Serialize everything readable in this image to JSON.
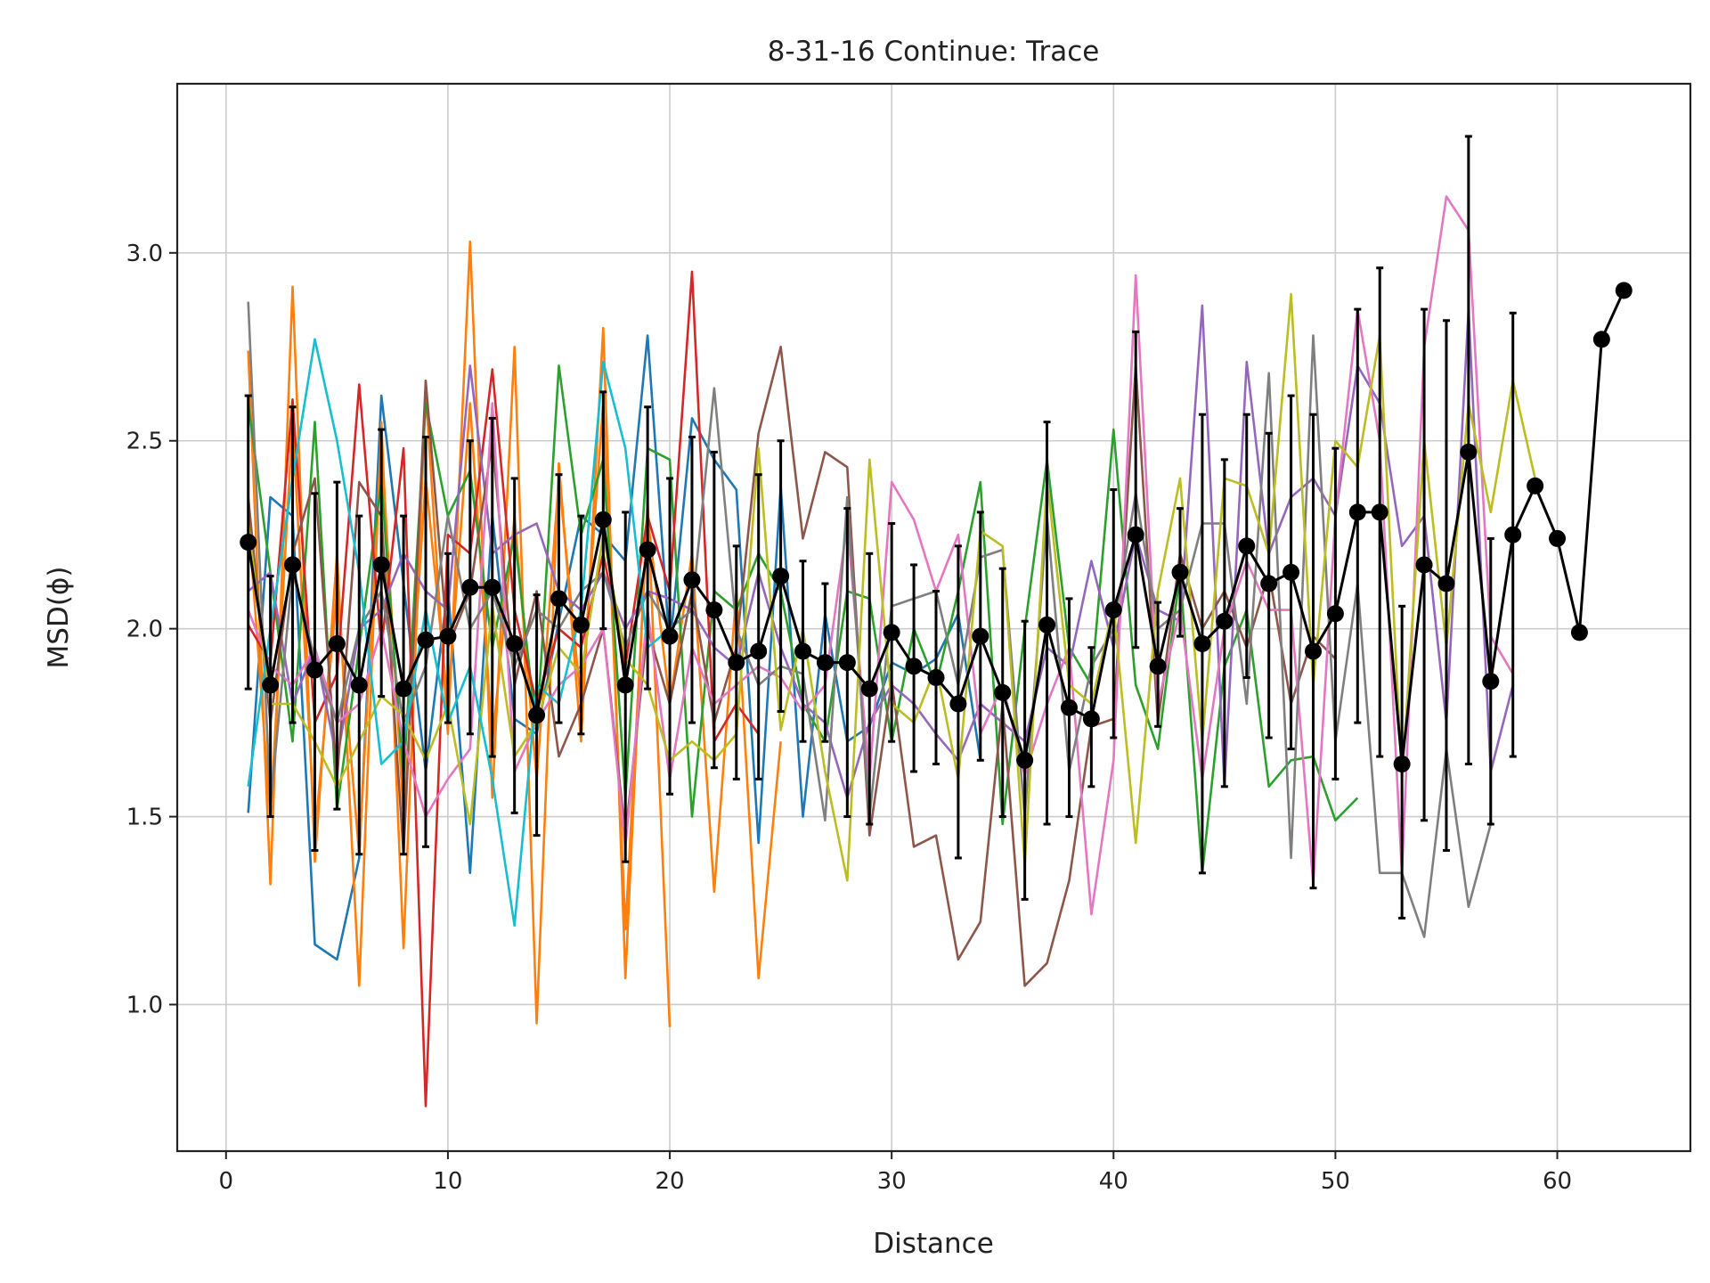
{
  "chart_data": {
    "type": "line",
    "title": "8-31-16 Continue: Trace",
    "xlabel": "Distance",
    "ylabel": "MSD(ϕ)",
    "xlim": [
      -2.2,
      66
    ],
    "ylim": [
      0.61,
      3.45
    ],
    "xticks": [
      0,
      10,
      20,
      30,
      40,
      50,
      60
    ],
    "yticks": [
      1.0,
      1.5,
      2.0,
      2.5,
      3.0
    ],
    "grid": true,
    "legend": "none",
    "series": [
      {
        "color": "#1f77b4",
        "x": [
          1,
          2,
          3,
          4,
          5,
          6,
          7,
          8,
          9,
          10,
          11,
          12,
          13,
          14,
          15,
          16,
          17,
          18,
          19,
          20,
          21,
          22,
          23,
          24,
          25,
          26,
          27,
          28,
          29,
          30,
          31,
          32,
          33,
          34
        ],
        "values": [
          1.51,
          2.35,
          2.3,
          1.16,
          1.12,
          1.39,
          2.62,
          2.12,
          1.62,
          2.11,
          1.35,
          2.3,
          1.76,
          1.72,
          2.02,
          2.3,
          2.25,
          2.18,
          2.78,
          1.95,
          2.56,
          2.45,
          2.37,
          1.43,
          2.38,
          1.5,
          2.04,
          1.7,
          1.74,
          1.91,
          1.88,
          1.92,
          2.04,
          1.65
        ]
      },
      {
        "color": "#ff7f0e",
        "x": [
          1,
          2,
          3,
          4,
          5,
          6,
          7,
          8,
          9,
          10,
          11,
          12,
          13,
          14,
          15,
          16,
          17,
          18,
          19,
          20
        ],
        "values": [
          2.74,
          1.32,
          2.91,
          1.38,
          2.2,
          1.05,
          2.55,
          1.15,
          2.63,
          1.72,
          3.03,
          1.55,
          2.75,
          0.95,
          2.44,
          1.7,
          2.8,
          1.07,
          2.34,
          0.94
        ]
      },
      {
        "color": "#ff7f0e",
        "x": [
          1,
          2,
          3,
          4,
          5,
          6,
          7,
          8,
          9,
          10,
          11,
          12,
          13,
          14,
          15,
          16,
          17,
          18,
          19,
          20,
          21,
          22,
          23,
          24,
          25
        ],
        "values": [
          2.3,
          1.5,
          2.55,
          1.45,
          2.1,
          1.4,
          2.5,
          1.5,
          2.4,
          1.8,
          2.6,
          1.7,
          2.3,
          1.6,
          2.4,
          1.8,
          2.6,
          1.2,
          2.3,
          1.8,
          2.2,
          1.3,
          2.1,
          1.07,
          1.7
        ]
      },
      {
        "color": "#2ca02c",
        "x": [
          1,
          2,
          3,
          4,
          5,
          6,
          7,
          8,
          9,
          10,
          11,
          12,
          13,
          14,
          15,
          16,
          17,
          18,
          19,
          20,
          21,
          22,
          23,
          24,
          25,
          26,
          27,
          28,
          29,
          30,
          31,
          32,
          33,
          34,
          35,
          36,
          37,
          38,
          39,
          40,
          41,
          42,
          43,
          44,
          45,
          46,
          47,
          48,
          49,
          50,
          51
        ],
        "values": [
          2.6,
          2.15,
          1.7,
          2.55,
          1.52,
          1.95,
          2.39,
          1.6,
          2.6,
          2.3,
          2.42,
          1.95,
          2.25,
          1.72,
          2.7,
          2.25,
          2.45,
          1.55,
          2.48,
          2.45,
          1.5,
          2.1,
          2.05,
          2.2,
          2.1,
          1.8,
          1.7,
          2.1,
          2.08,
          1.7,
          2.0,
          1.85,
          2.1,
          2.39,
          1.48,
          2.0,
          2.45,
          1.95,
          1.85,
          2.53,
          1.85,
          1.68,
          2.15,
          1.35,
          1.9,
          2.05,
          1.58,
          1.65,
          1.66,
          1.49,
          1.55
        ]
      },
      {
        "color": "#d62728",
        "x": [
          1,
          2,
          3,
          4,
          5,
          6,
          7,
          8,
          9,
          10,
          11,
          12,
          13,
          14,
          15,
          16,
          17,
          18,
          19,
          20,
          21,
          22,
          23,
          24
        ],
        "values": [
          2.01,
          1.91,
          2.61,
          1.75,
          1.88,
          2.65,
          1.95,
          2.48,
          0.73,
          2.25,
          2.2,
          2.69,
          2.05,
          1.8,
          2.0,
          1.95,
          2.2,
          1.9,
          2.3,
          2.1,
          2.95,
          1.7,
          1.8,
          1.72
        ]
      },
      {
        "color": "#9467bd",
        "x": [
          1,
          2,
          3,
          4,
          5,
          6,
          7,
          8,
          9,
          10,
          11,
          12,
          13,
          14,
          15,
          16,
          17,
          18,
          19,
          20,
          21,
          22,
          23,
          24,
          25,
          26,
          27,
          28,
          29,
          30,
          31,
          32,
          33,
          34,
          35,
          36,
          37,
          38,
          39,
          40,
          41,
          42,
          43,
          44,
          45,
          46,
          47,
          48,
          49,
          50,
          51,
          52,
          53,
          54,
          55,
          56,
          57,
          58
        ],
        "values": [
          2.1,
          2.15,
          1.8,
          1.95,
          1.65,
          2.0,
          2.05,
          2.2,
          2.1,
          2.05,
          2.7,
          2.2,
          2.25,
          2.28,
          2.1,
          2.05,
          2.15,
          2.0,
          2.1,
          2.08,
          2.05,
          1.95,
          1.9,
          2.15,
          1.95,
          1.8,
          1.75,
          1.55,
          1.75,
          1.85,
          1.8,
          1.72,
          1.65,
          1.8,
          1.75,
          1.7,
          1.95,
          1.9,
          2.18,
          1.95,
          2.25,
          2.05,
          2.02,
          2.86,
          1.58,
          2.71,
          2.2,
          2.35,
          2.4,
          2.3,
          2.7,
          2.6,
          2.22,
          2.3,
          1.75,
          2.85,
          1.62,
          1.85
        ]
      },
      {
        "color": "#8c564b",
        "x": [
          1,
          2,
          3,
          4,
          5,
          6,
          7,
          8,
          9,
          10,
          11,
          12,
          13,
          14,
          15,
          16,
          17,
          18,
          19,
          20,
          21,
          22,
          23,
          24,
          25,
          26,
          27,
          28,
          29,
          30,
          31,
          32,
          33,
          34,
          35,
          36,
          37,
          38,
          39,
          40,
          41,
          42,
          43,
          44,
          45,
          46,
          47,
          48,
          49,
          50
        ],
        "values": [
          2.35,
          1.75,
          2.2,
          2.4,
          1.6,
          2.39,
          2.3,
          1.4,
          2.66,
          1.95,
          2.1,
          2.5,
          1.85,
          2.1,
          1.66,
          1.8,
          2.0,
          1.45,
          2.0,
          1.8,
          2.1,
          1.75,
          1.95,
          2.52,
          2.75,
          2.24,
          2.47,
          2.43,
          1.45,
          1.86,
          1.42,
          1.45,
          1.12,
          1.22,
          1.8,
          1.05,
          1.11,
          1.33,
          1.74,
          1.76,
          2.7,
          1.75,
          2.2,
          2.0,
          2.1,
          1.95,
          2.15,
          1.8,
          1.98,
          1.92
        ]
      },
      {
        "color": "#e377c2",
        "x": [
          1,
          2,
          3,
          4,
          5,
          6,
          7,
          8,
          9,
          10,
          11,
          12,
          13,
          14,
          15,
          16,
          17,
          18,
          19,
          20,
          21,
          22,
          23,
          24,
          25,
          26,
          27,
          28,
          29,
          30,
          31,
          32,
          33,
          34,
          35,
          36,
          37,
          38,
          39,
          40,
          41,
          42,
          43,
          44,
          45,
          46,
          47,
          48,
          49,
          50,
          51,
          52,
          53,
          54,
          55,
          56,
          57,
          58
        ],
        "values": [
          2.05,
          1.9,
          1.85,
          1.95,
          1.75,
          1.8,
          2.0,
          1.7,
          1.5,
          1.6,
          1.68,
          2.6,
          1.62,
          1.75,
          1.85,
          1.9,
          2.0,
          1.42,
          2.05,
          1.6,
          1.95,
          1.8,
          1.85,
          1.9,
          1.87,
          1.78,
          1.85,
          2.28,
          1.6,
          2.39,
          2.29,
          2.1,
          2.25,
          1.72,
          1.85,
          1.61,
          1.8,
          1.95,
          1.24,
          1.65,
          2.94,
          1.8,
          2.05,
          1.6,
          2.0,
          2.18,
          2.05,
          2.05,
          1.32,
          2.3,
          2.85,
          2.5,
          1.35,
          2.75,
          3.15,
          3.06,
          1.98,
          1.88
        ]
      },
      {
        "color": "#7f7f7f",
        "x": [
          1,
          2,
          3,
          4,
          5,
          6,
          7,
          8,
          9,
          10,
          11,
          12,
          13,
          14,
          15,
          16,
          17,
          18,
          19,
          20,
          21,
          22,
          23,
          24,
          25,
          26,
          27,
          28,
          29,
          30,
          31,
          32,
          33,
          34,
          35,
          36,
          37,
          38,
          39,
          40,
          41,
          42,
          43,
          44,
          45,
          46,
          47,
          48,
          49,
          50,
          51,
          52,
          53,
          54,
          55,
          56,
          57
        ],
        "values": [
          2.87,
          1.53,
          2.15,
          1.92,
          1.75,
          2.0,
          2.1,
          1.75,
          1.9,
          2.3,
          2.0,
          2.1,
          1.9,
          2.05,
          2.0,
          2.1,
          2.15,
          1.95,
          2.1,
          2.0,
          2.05,
          2.64,
          2.0,
          1.85,
          1.9,
          1.88,
          1.49,
          2.35,
          1.5,
          2.06,
          2.08,
          2.1,
          1.85,
          2.19,
          2.21,
          1.5,
          2.3,
          1.62,
          1.9,
          2.0,
          2.36,
          2.0,
          2.05,
          2.28,
          2.28,
          1.8,
          2.68,
          1.39,
          2.78,
          1.7,
          2.12,
          1.35,
          1.35,
          1.18,
          1.68,
          1.26,
          1.48
        ]
      },
      {
        "color": "#bcbd22",
        "x": [
          1,
          2,
          3,
          4,
          5,
          6,
          7,
          8,
          9,
          10,
          11,
          12,
          13,
          14,
          15,
          16,
          17,
          18,
          19,
          20,
          21,
          22,
          23,
          24,
          25,
          26,
          27,
          28,
          29,
          30,
          31,
          32,
          33,
          34,
          35,
          36,
          37,
          38,
          39,
          40,
          41,
          42,
          43,
          44,
          45,
          46,
          47,
          48,
          49,
          50,
          51,
          52,
          53,
          54,
          55,
          56,
          57,
          58,
          59
        ],
        "values": [
          2.28,
          1.8,
          1.8,
          1.7,
          1.58,
          1.7,
          1.82,
          1.77,
          1.65,
          1.8,
          1.48,
          2.06,
          1.66,
          1.75,
          1.95,
          1.88,
          2.25,
          1.92,
          1.85,
          1.65,
          1.7,
          1.65,
          1.72,
          2.48,
          1.73,
          2.0,
          1.62,
          1.33,
          2.45,
          1.8,
          1.75,
          1.9,
          1.6,
          2.26,
          2.22,
          1.37,
          2.4,
          1.85,
          1.8,
          2.06,
          1.43,
          2.1,
          2.4,
          1.7,
          2.4,
          2.38,
          2.2,
          2.89,
          1.85,
          2.5,
          2.43,
          2.78,
          1.6,
          2.5,
          1.95,
          2.6,
          2.31,
          2.66,
          2.4
        ]
      },
      {
        "color": "#17becf",
        "x": [
          1,
          2,
          3,
          4,
          5,
          6,
          7,
          8,
          9,
          10,
          11,
          12,
          13,
          14,
          15,
          16,
          17,
          18,
          19,
          20
        ],
        "values": [
          1.58,
          2.0,
          2.4,
          2.77,
          2.5,
          2.15,
          1.64,
          1.7,
          2.05,
          1.75,
          1.9,
          1.6,
          1.21,
          1.85,
          1.8,
          2.05,
          2.71,
          2.48,
          1.95,
          2.0
        ]
      }
    ],
    "mean": {
      "color": "#000000",
      "x": [
        1,
        2,
        3,
        4,
        5,
        6,
        7,
        8,
        9,
        10,
        11,
        12,
        13,
        14,
        15,
        16,
        17,
        18,
        19,
        20,
        21,
        22,
        23,
        24,
        25,
        26,
        27,
        28,
        29,
        30,
        31,
        32,
        33,
        34,
        35,
        36,
        37,
        38,
        39,
        40,
        41,
        42,
        43,
        44,
        45,
        46,
        47,
        48,
        49,
        50,
        51,
        52,
        53,
        54,
        55,
        56,
        57,
        58,
        59,
        60,
        61,
        62,
        63
      ],
      "values": [
        2.23,
        1.85,
        2.17,
        1.89,
        1.96,
        1.85,
        2.17,
        1.84,
        1.97,
        1.98,
        2.11,
        2.11,
        1.96,
        1.77,
        2.08,
        2.01,
        2.29,
        1.85,
        2.21,
        1.98,
        2.13,
        2.05,
        1.91,
        1.94,
        2.14,
        1.94,
        1.91,
        1.91,
        1.84,
        1.99,
        1.9,
        1.87,
        1.8,
        1.98,
        1.83,
        1.65,
        2.01,
        1.79,
        1.76,
        2.05,
        2.25,
        1.9,
        2.15,
        1.96,
        2.02,
        2.22,
        2.12,
        2.15,
        1.94,
        2.04,
        2.31,
        2.31,
        1.64,
        2.17,
        2.12,
        2.47,
        1.86,
        2.25,
        2.38,
        2.24,
        1.99,
        2.77,
        2.9
      ],
      "err_low": [
        1.84,
        1.5,
        1.75,
        1.41,
        1.52,
        1.4,
        1.82,
        1.4,
        1.42,
        1.75,
        1.72,
        1.66,
        1.51,
        1.45,
        1.75,
        1.72,
        2.0,
        1.38,
        1.84,
        1.56,
        1.75,
        1.63,
        1.6,
        1.6,
        1.78,
        1.7,
        1.7,
        1.5,
        1.48,
        1.7,
        1.62,
        1.64,
        1.39,
        1.65,
        1.5,
        1.28,
        1.48,
        1.5,
        1.58,
        1.71,
        1.95,
        1.74,
        1.98,
        1.35,
        1.58,
        1.87,
        1.71,
        1.68,
        1.31,
        1.6,
        1.75,
        1.66,
        1.23,
        1.49,
        1.41,
        1.64,
        1.48,
        1.66,
        2.38,
        2.24,
        1.99,
        2.77,
        2.9
      ],
      "err_high": [
        2.62,
        2.14,
        2.59,
        2.36,
        2.39,
        2.3,
        2.53,
        2.3,
        2.51,
        2.2,
        2.5,
        2.56,
        2.4,
        2.09,
        2.41,
        2.3,
        2.63,
        2.31,
        2.59,
        2.4,
        2.51,
        2.47,
        2.22,
        2.41,
        2.5,
        2.18,
        2.12,
        2.32,
        2.2,
        2.28,
        2.17,
        2.1,
        2.22,
        2.31,
        2.16,
        2.02,
        2.55,
        2.08,
        1.95,
        2.37,
        2.79,
        2.07,
        2.32,
        2.57,
        2.45,
        2.57,
        2.52,
        2.62,
        2.57,
        2.48,
        2.85,
        2.96,
        2.06,
        2.85,
        2.82,
        3.31,
        2.24,
        2.84,
        2.38,
        2.24,
        1.99,
        2.77,
        2.9
      ]
    }
  }
}
